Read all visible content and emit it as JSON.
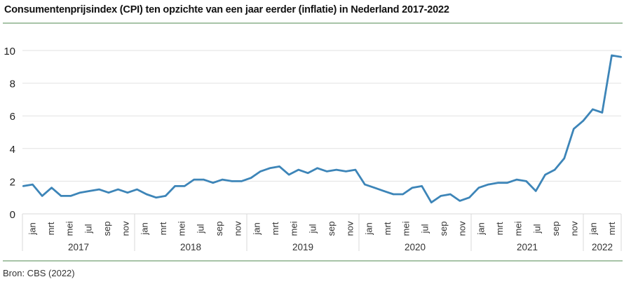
{
  "chart_data": {
    "type": "line",
    "title": "Consumentenprijsindex (CPI) ten opzichte van een jaar eerder (inflatie) in Nederland 2017-2022",
    "source": "Bron: CBS (2022)",
    "xlabel": "",
    "ylabel": "",
    "ylim": [
      0,
      10
    ],
    "yticks": [
      0,
      2,
      4,
      6,
      8,
      10
    ],
    "grid": true,
    "line_color": "#3d85b8",
    "years": [
      "2017",
      "2018",
      "2019",
      "2020",
      "2021",
      "2022"
    ],
    "month_labels": [
      "jan",
      "mrt",
      "mei",
      "jul",
      "sep",
      "nov"
    ],
    "months_per_year": [
      12,
      12,
      12,
      12,
      12,
      4
    ],
    "values": [
      1.7,
      1.8,
      1.1,
      1.6,
      1.1,
      1.1,
      1.3,
      1.4,
      1.5,
      1.3,
      1.5,
      1.3,
      1.5,
      1.2,
      1.0,
      1.1,
      1.7,
      1.7,
      2.1,
      2.1,
      1.9,
      2.1,
      2.0,
      2.0,
      2.2,
      2.6,
      2.8,
      2.9,
      2.4,
      2.7,
      2.5,
      2.8,
      2.6,
      2.7,
      2.6,
      2.7,
      1.8,
      1.6,
      1.4,
      1.2,
      1.2,
      1.6,
      1.7,
      0.7,
      1.1,
      1.2,
      0.8,
      1.0,
      1.6,
      1.8,
      1.9,
      1.9,
      2.1,
      2.0,
      1.4,
      2.4,
      2.7,
      3.4,
      5.2,
      5.7,
      6.4,
      6.2,
      9.7,
      9.6
    ]
  }
}
